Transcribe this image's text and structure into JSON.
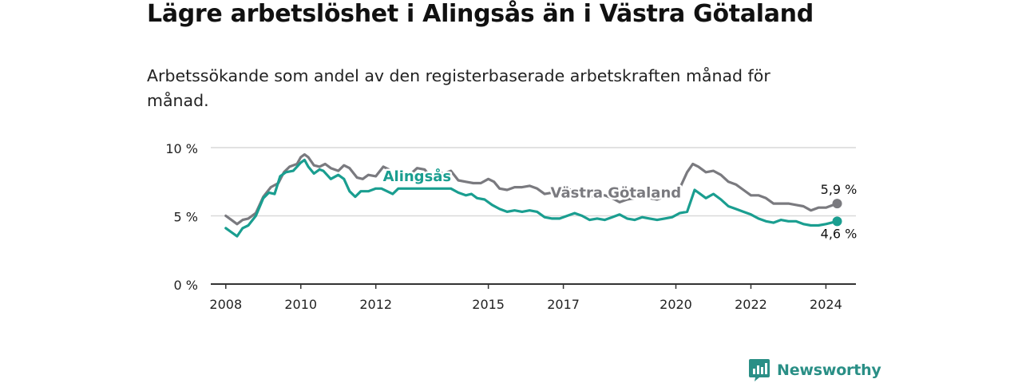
{
  "header": {
    "title": "Lägre arbetslöshet i Alingsås än i Västra Götaland",
    "subtitle": "Arbetssökande som andel av den registerbaserade arbetskraften månad för månad."
  },
  "brand": {
    "name": "Newsworthy"
  },
  "colors": {
    "alingsas": "#1a9e90",
    "vastra": "#7a7a7f",
    "grid": "#d9d9d9",
    "axis": "#333333",
    "text": "#222222"
  },
  "chart_data": {
    "type": "line",
    "title": "Lägre arbetslöshet i Alingsås än i Västra Götaland",
    "xlabel": "",
    "ylabel": "",
    "xlim": [
      2007.6,
      2024.8
    ],
    "ylim": [
      0,
      10
    ],
    "yticks": [
      0,
      5,
      10
    ],
    "ytick_labels": [
      "0 %",
      "5 %",
      "10 %"
    ],
    "xticks": [
      2008,
      2010,
      2012,
      2015,
      2017,
      2020,
      2022,
      2024
    ],
    "xtick_labels": [
      "2008",
      "2010",
      "2012",
      "2015",
      "2017",
      "2020",
      "2022",
      "2024"
    ],
    "grid": true,
    "end_labels": {
      "vastra": "5,9 %",
      "alingsas": "4,6 %"
    },
    "series": [
      {
        "name": "Västra Götaland",
        "key": "vastra",
        "points": [
          [
            2008.0,
            5.0
          ],
          [
            2008.15,
            4.7
          ],
          [
            2008.3,
            4.4
          ],
          [
            2008.45,
            4.7
          ],
          [
            2008.6,
            4.8
          ],
          [
            2008.8,
            5.2
          ],
          [
            2009.0,
            6.4
          ],
          [
            2009.2,
            7.1
          ],
          [
            2009.4,
            7.4
          ],
          [
            2009.55,
            8.2
          ],
          [
            2009.7,
            8.6
          ],
          [
            2009.9,
            8.8
          ],
          [
            2010.0,
            9.3
          ],
          [
            2010.1,
            9.5
          ],
          [
            2010.2,
            9.3
          ],
          [
            2010.35,
            8.7
          ],
          [
            2010.5,
            8.6
          ],
          [
            2010.65,
            8.8
          ],
          [
            2010.8,
            8.5
          ],
          [
            2011.0,
            8.3
          ],
          [
            2011.15,
            8.7
          ],
          [
            2011.3,
            8.5
          ],
          [
            2011.5,
            7.8
          ],
          [
            2011.65,
            7.7
          ],
          [
            2011.8,
            8.0
          ],
          [
            2012.0,
            7.9
          ],
          [
            2012.2,
            8.6
          ],
          [
            2012.35,
            8.4
          ],
          [
            2012.5,
            7.8
          ],
          [
            2012.7,
            8.1
          ],
          [
            2012.9,
            8.0
          ],
          [
            2013.1,
            8.5
          ],
          [
            2013.3,
            8.4
          ],
          [
            2013.45,
            7.9
          ],
          [
            2013.6,
            8.2
          ],
          [
            2013.8,
            8.1
          ],
          [
            2014.0,
            8.3
          ],
          [
            2014.2,
            7.6
          ],
          [
            2014.4,
            7.5
          ],
          [
            2014.6,
            7.4
          ],
          [
            2014.8,
            7.4
          ],
          [
            2015.0,
            7.7
          ],
          [
            2015.15,
            7.5
          ],
          [
            2015.3,
            7.0
          ],
          [
            2015.5,
            6.9
          ],
          [
            2015.7,
            7.1
          ],
          [
            2015.9,
            7.1
          ],
          [
            2016.1,
            7.2
          ],
          [
            2016.3,
            7.0
          ],
          [
            2016.5,
            6.6
          ],
          [
            2016.7,
            6.7
          ],
          [
            2016.9,
            6.9
          ],
          [
            2017.1,
            7.0
          ],
          [
            2017.3,
            6.8
          ],
          [
            2017.5,
            6.5
          ],
          [
            2017.7,
            6.4
          ],
          [
            2017.9,
            6.5
          ],
          [
            2018.1,
            6.5
          ],
          [
            2018.3,
            6.3
          ],
          [
            2018.5,
            6.0
          ],
          [
            2018.7,
            6.2
          ],
          [
            2018.9,
            6.3
          ],
          [
            2019.1,
            6.4
          ],
          [
            2019.3,
            6.3
          ],
          [
            2019.5,
            6.2
          ],
          [
            2019.7,
            6.4
          ],
          [
            2019.9,
            6.6
          ],
          [
            2020.1,
            7.0
          ],
          [
            2020.3,
            8.2
          ],
          [
            2020.45,
            8.8
          ],
          [
            2020.6,
            8.6
          ],
          [
            2020.8,
            8.2
          ],
          [
            2021.0,
            8.3
          ],
          [
            2021.2,
            8.0
          ],
          [
            2021.4,
            7.5
          ],
          [
            2021.6,
            7.3
          ],
          [
            2021.8,
            6.9
          ],
          [
            2022.0,
            6.5
          ],
          [
            2022.2,
            6.5
          ],
          [
            2022.4,
            6.3
          ],
          [
            2022.6,
            5.9
          ],
          [
            2022.8,
            5.9
          ],
          [
            2023.0,
            5.9
          ],
          [
            2023.2,
            5.8
          ],
          [
            2023.4,
            5.7
          ],
          [
            2023.6,
            5.4
          ],
          [
            2023.8,
            5.6
          ],
          [
            2024.0,
            5.6
          ],
          [
            2024.2,
            5.8
          ],
          [
            2024.3,
            5.9
          ]
        ]
      },
      {
        "name": "Alingsås",
        "key": "alingsas",
        "points": [
          [
            2008.0,
            4.1
          ],
          [
            2008.15,
            3.8
          ],
          [
            2008.3,
            3.5
          ],
          [
            2008.45,
            4.1
          ],
          [
            2008.6,
            4.3
          ],
          [
            2008.8,
            5.0
          ],
          [
            2009.0,
            6.3
          ],
          [
            2009.15,
            6.7
          ],
          [
            2009.3,
            6.6
          ],
          [
            2009.45,
            7.9
          ],
          [
            2009.6,
            8.2
          ],
          [
            2009.8,
            8.3
          ],
          [
            2010.0,
            8.9
          ],
          [
            2010.1,
            9.1
          ],
          [
            2010.2,
            8.6
          ],
          [
            2010.35,
            8.1
          ],
          [
            2010.5,
            8.4
          ],
          [
            2010.6,
            8.3
          ],
          [
            2010.8,
            7.7
          ],
          [
            2011.0,
            8.0
          ],
          [
            2011.15,
            7.7
          ],
          [
            2011.3,
            6.8
          ],
          [
            2011.45,
            6.4
          ],
          [
            2011.6,
            6.8
          ],
          [
            2011.8,
            6.8
          ],
          [
            2012.0,
            7.0
          ],
          [
            2012.15,
            7.0
          ],
          [
            2012.3,
            6.8
          ],
          [
            2012.45,
            6.6
          ],
          [
            2012.6,
            7.0
          ],
          [
            2013.0,
            7.0
          ],
          [
            2013.4,
            7.0
          ],
          [
            2014.0,
            7.0
          ],
          [
            2014.2,
            6.7
          ],
          [
            2014.4,
            6.5
          ],
          [
            2014.55,
            6.6
          ],
          [
            2014.7,
            6.3
          ],
          [
            2014.9,
            6.2
          ],
          [
            2015.1,
            5.8
          ],
          [
            2015.3,
            5.5
          ],
          [
            2015.5,
            5.3
          ],
          [
            2015.7,
            5.4
          ],
          [
            2015.9,
            5.3
          ],
          [
            2016.1,
            5.4
          ],
          [
            2016.3,
            5.3
          ],
          [
            2016.5,
            4.9
          ],
          [
            2016.7,
            4.8
          ],
          [
            2016.9,
            4.8
          ],
          [
            2017.1,
            5.0
          ],
          [
            2017.3,
            5.2
          ],
          [
            2017.5,
            5.0
          ],
          [
            2017.7,
            4.7
          ],
          [
            2017.9,
            4.8
          ],
          [
            2018.1,
            4.7
          ],
          [
            2018.3,
            4.9
          ],
          [
            2018.5,
            5.1
          ],
          [
            2018.7,
            4.8
          ],
          [
            2018.9,
            4.7
          ],
          [
            2019.1,
            4.9
          ],
          [
            2019.3,
            4.8
          ],
          [
            2019.5,
            4.7
          ],
          [
            2019.7,
            4.8
          ],
          [
            2019.9,
            4.9
          ],
          [
            2020.1,
            5.2
          ],
          [
            2020.3,
            5.3
          ],
          [
            2020.5,
            6.9
          ],
          [
            2020.65,
            6.6
          ],
          [
            2020.8,
            6.3
          ],
          [
            2021.0,
            6.6
          ],
          [
            2021.2,
            6.2
          ],
          [
            2021.4,
            5.7
          ],
          [
            2021.6,
            5.5
          ],
          [
            2021.8,
            5.3
          ],
          [
            2022.0,
            5.1
          ],
          [
            2022.2,
            4.8
          ],
          [
            2022.4,
            4.6
          ],
          [
            2022.6,
            4.5
          ],
          [
            2022.8,
            4.7
          ],
          [
            2023.0,
            4.6
          ],
          [
            2023.2,
            4.6
          ],
          [
            2023.4,
            4.4
          ],
          [
            2023.6,
            4.3
          ],
          [
            2023.8,
            4.3
          ],
          [
            2024.0,
            4.4
          ],
          [
            2024.15,
            4.5
          ],
          [
            2024.3,
            4.6
          ]
        ]
      }
    ],
    "series_labels": [
      {
        "key": "alingsas",
        "text": "Alingsås",
        "at": [
          2013.1,
          7.55
        ]
      },
      {
        "key": "vastra",
        "text": "Västra Götaland",
        "at": [
          2018.4,
          6.35
        ]
      }
    ]
  }
}
